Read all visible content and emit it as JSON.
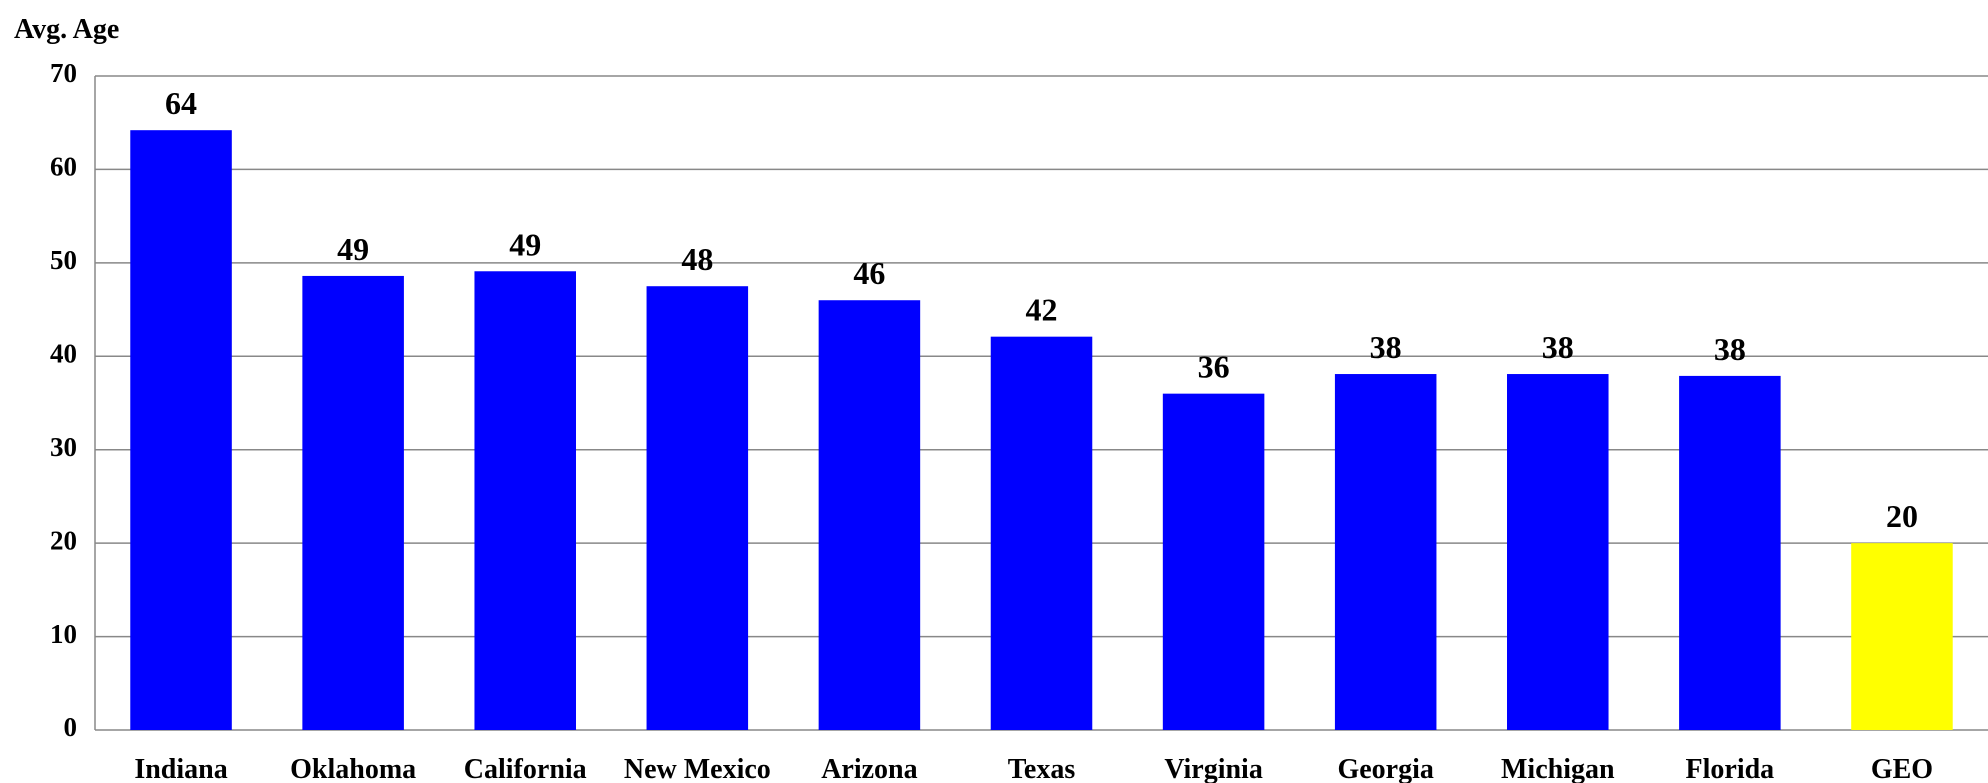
{
  "chart_data": {
    "type": "bar",
    "y_label": "Avg. Age",
    "categories": [
      "Indiana",
      "Oklahoma",
      "California",
      "New Mexico",
      "Arizona",
      "Texas",
      "Virginia",
      "Georgia",
      "Michigan",
      "Florida",
      "GEO"
    ],
    "values": [
      64.2,
      48.6,
      49.1,
      47.5,
      46.0,
      42.1,
      36.0,
      38.1,
      38.1,
      37.9,
      20.0
    ],
    "value_labels": [
      "64",
      "49",
      "49",
      "48",
      "46",
      "42",
      "36",
      "38",
      "38",
      "38",
      "20"
    ],
    "colors": [
      "#0000ff",
      "#0000ff",
      "#0000ff",
      "#0000ff",
      "#0000ff",
      "#0000ff",
      "#0000ff",
      "#0000ff",
      "#0000ff",
      "#0000ff",
      "#ffff00"
    ],
    "ylim": [
      0,
      70
    ],
    "yticks": [
      0,
      10,
      20,
      30,
      40,
      50,
      60,
      70
    ],
    "grid": true
  }
}
